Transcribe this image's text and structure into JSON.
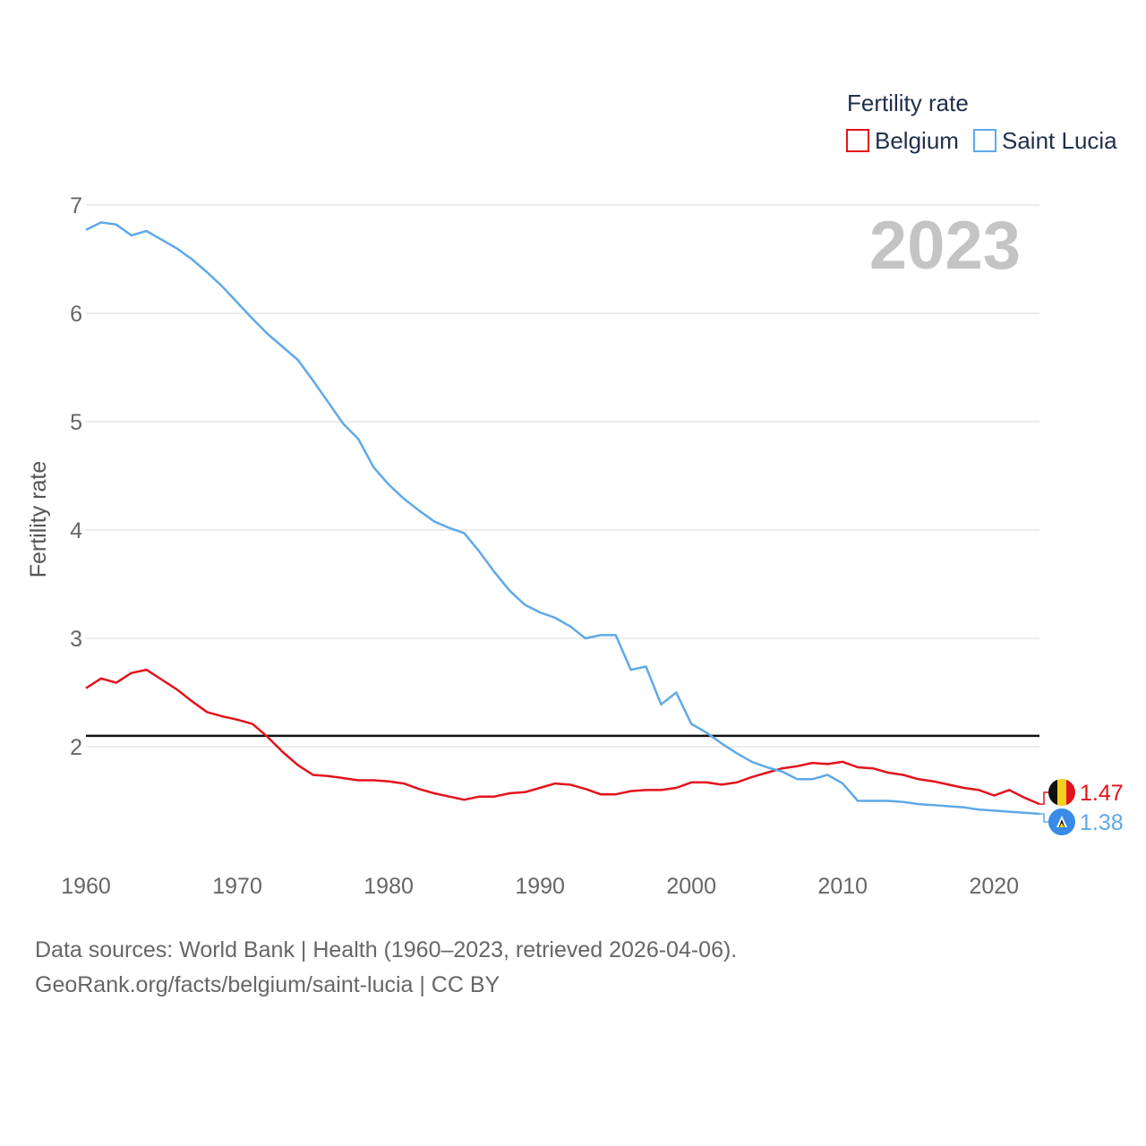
{
  "chart_data": {
    "type": "line",
    "title": "",
    "xlabel": "",
    "ylabel": "Fertility rate",
    "xlim": [
      1960,
      2023
    ],
    "ylim": [
      0.8,
      7.25
    ],
    "yticks": [
      2,
      3,
      4,
      5,
      6,
      7
    ],
    "xticks": [
      1960,
      1970,
      1980,
      1990,
      2000,
      2010,
      2020
    ],
    "x": [
      1960,
      1961,
      1962,
      1963,
      1964,
      1965,
      1966,
      1967,
      1968,
      1969,
      1970,
      1971,
      1972,
      1973,
      1974,
      1975,
      1976,
      1977,
      1978,
      1979,
      1980,
      1981,
      1982,
      1983,
      1984,
      1985,
      1986,
      1987,
      1988,
      1989,
      1990,
      1991,
      1992,
      1993,
      1994,
      1995,
      1996,
      1997,
      1998,
      1999,
      2000,
      2001,
      2002,
      2003,
      2004,
      2005,
      2006,
      2007,
      2008,
      2009,
      2010,
      2011,
      2012,
      2013,
      2014,
      2015,
      2016,
      2017,
      2018,
      2019,
      2020,
      2021,
      2022,
      2023
    ],
    "series": [
      {
        "name": "Belgium",
        "color": "#e3121b",
        "end_label": "1.47",
        "values": [
          2.54,
          2.63,
          2.59,
          2.68,
          2.71,
          2.62,
          2.53,
          2.42,
          2.32,
          2.28,
          2.25,
          2.21,
          2.09,
          1.95,
          1.83,
          1.74,
          1.73,
          1.71,
          1.69,
          1.69,
          1.68,
          1.66,
          1.61,
          1.57,
          1.54,
          1.51,
          1.54,
          1.54,
          1.57,
          1.58,
          1.62,
          1.66,
          1.65,
          1.61,
          1.56,
          1.56,
          1.59,
          1.6,
          1.6,
          1.62,
          1.67,
          1.67,
          1.65,
          1.67,
          1.72,
          1.76,
          1.8,
          1.82,
          1.85,
          1.84,
          1.86,
          1.81,
          1.8,
          1.76,
          1.74,
          1.7,
          1.68,
          1.65,
          1.62,
          1.6,
          1.55,
          1.6,
          1.53,
          1.47
        ]
      },
      {
        "name": "Saint Lucia",
        "color": "#5ea9e8",
        "end_label": "1.38",
        "values": [
          6.77,
          6.84,
          6.82,
          6.72,
          6.76,
          6.68,
          6.6,
          6.5,
          6.38,
          6.25,
          6.1,
          5.95,
          5.81,
          5.69,
          5.57,
          5.38,
          5.18,
          4.98,
          4.84,
          4.58,
          4.42,
          4.29,
          4.18,
          4.08,
          4.02,
          3.97,
          3.8,
          3.61,
          3.44,
          3.31,
          3.24,
          3.19,
          3.11,
          3.0,
          3.03,
          3.03,
          2.71,
          2.74,
          2.39,
          2.5,
          2.21,
          2.13,
          2.03,
          1.94,
          1.86,
          1.81,
          1.77,
          1.7,
          1.7,
          1.74,
          1.66,
          1.5,
          1.5,
          1.5,
          1.49,
          1.47,
          1.46,
          1.45,
          1.44,
          1.42,
          1.41,
          1.4,
          1.39,
          1.38
        ]
      }
    ],
    "reference_line": {
      "value": 2.1,
      "color": "#111111"
    },
    "legend": {
      "title": "Fertility rate",
      "placement": "top-right"
    },
    "year_label": "2023",
    "grid": true
  },
  "footer": {
    "line1": "Data sources: World Bank | Health (1960–2023, retrieved 2026-04-06).",
    "line2": "GeoRank.org/facts/belgium/saint-lucia | CC BY"
  }
}
